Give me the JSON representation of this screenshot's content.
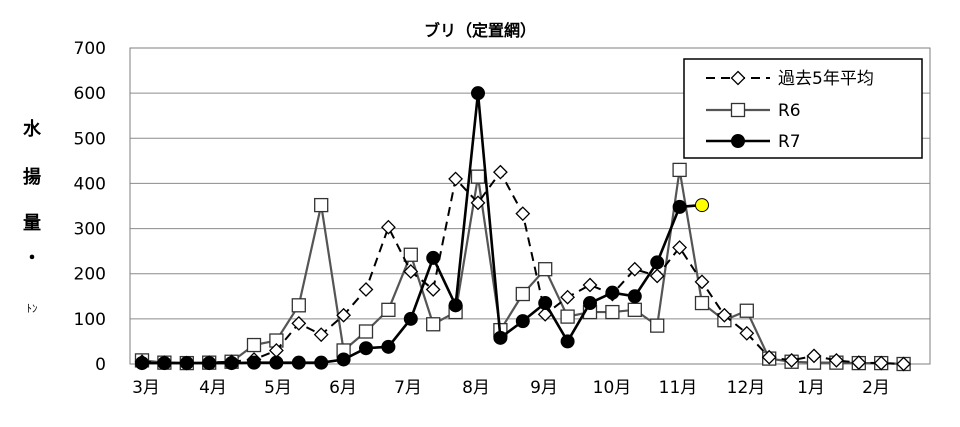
{
  "chart_data": {
    "type": "line",
    "title": "ブリ（定置網）",
    "ylabel_chars": [
      "水",
      "揚",
      "量",
      "・",
      "ﾄﾝ"
    ],
    "ylim": [
      0,
      700
    ],
    "yticks": [
      "0",
      "100",
      "200",
      "300",
      "400",
      "500",
      "600",
      "700"
    ],
    "month_labels": [
      "3月",
      "4月",
      "5月",
      "6月",
      "7月",
      "8月",
      "9月",
      "10月",
      "11月",
      "12月",
      "1月",
      "2月"
    ],
    "grid": true,
    "legend_position": "top-right",
    "highlight_color": "#ffff00",
    "series": [
      {
        "name": "過去5年平均",
        "style": "dashed-diamond",
        "color": "#000000",
        "values": [
          5,
          3,
          2,
          3,
          5,
          10,
          30,
          90,
          65,
          108,
          165,
          303,
          205,
          165,
          410,
          357,
          425,
          333,
          110,
          148,
          175,
          155,
          210,
          195,
          258,
          182,
          108,
          68,
          15,
          8,
          18,
          8,
          3,
          2,
          0
        ]
      },
      {
        "name": "R6",
        "style": "gray-square",
        "color": "#555555",
        "values": [
          8,
          3,
          2,
          3,
          5,
          42,
          52,
          130,
          352,
          30,
          72,
          120,
          242,
          88,
          115,
          415,
          75,
          155,
          210,
          105,
          115,
          115,
          120,
          85,
          430,
          135,
          97,
          118,
          12,
          5,
          3,
          3,
          2,
          2,
          0
        ]
      },
      {
        "name": "R7",
        "style": "black-circle",
        "color": "#000000",
        "values": [
          2,
          2,
          2,
          2,
          2,
          3,
          3,
          3,
          3,
          10,
          35,
          38,
          100,
          235,
          130,
          600,
          58,
          95,
          135,
          50,
          135,
          158,
          150,
          225,
          348,
          352,
          null,
          null,
          null,
          null,
          null,
          null,
          null,
          null,
          null
        ]
      }
    ]
  }
}
